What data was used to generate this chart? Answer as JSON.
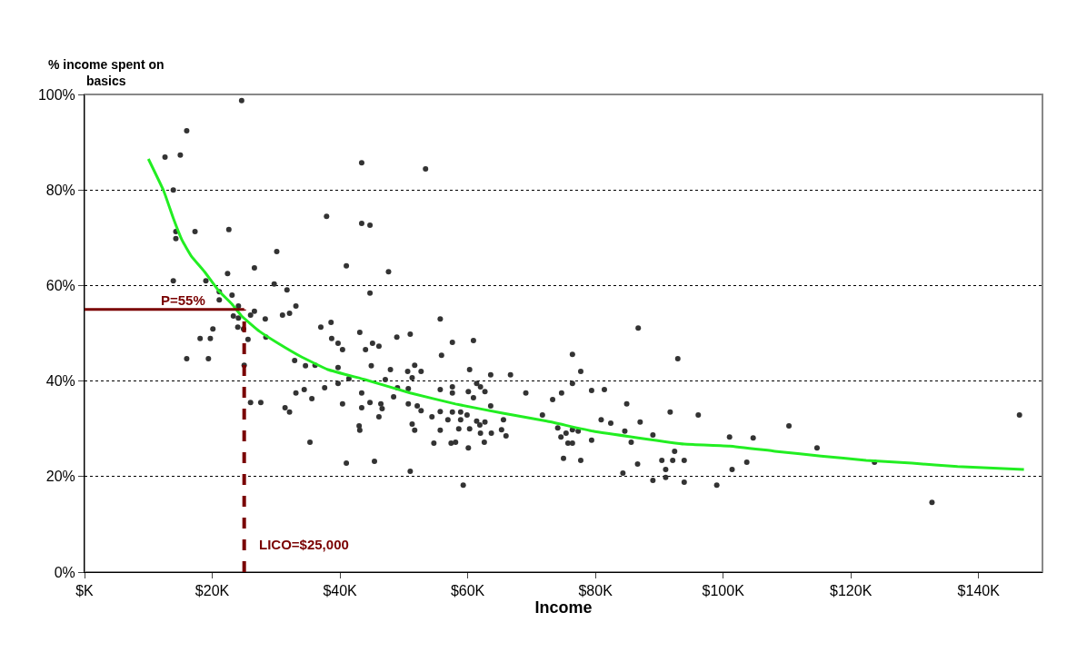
{
  "chart_data": {
    "type": "scatter",
    "xlabel": "Income",
    "ylabel": "% income spent on basics",
    "xlim": [
      0,
      150
    ],
    "xticks": [
      {
        "value": 0,
        "label": "$K"
      },
      {
        "value": 20,
        "label": "$20K"
      },
      {
        "value": 40,
        "label": "$40K"
      },
      {
        "value": 60,
        "label": "$60K"
      },
      {
        "value": 80,
        "label": "$80K"
      },
      {
        "value": 100,
        "label": "$100K"
      },
      {
        "value": 120,
        "label": "$120K"
      },
      {
        "value": 140,
        "label": "$140K"
      }
    ],
    "ylim": [
      0,
      100
    ],
    "yticks": [
      {
        "value": 0,
        "label": "0%"
      },
      {
        "value": 20,
        "label": "20%"
      },
      {
        "value": 40,
        "label": "40%"
      },
      {
        "value": 60,
        "label": "60%"
      },
      {
        "value": 80,
        "label": "80%"
      },
      {
        "value": 100,
        "label": "100%"
      }
    ],
    "grid": "y",
    "series": [
      {
        "marker": "circle",
        "color": "#333333",
        "x": [
          24.6,
          16.0,
          12.6,
          15.0,
          13.9,
          37.9,
          14.3,
          14.3,
          17.3,
          22.6,
          30.1,
          41.0,
          26.6,
          22.4,
          13.9,
          19.0,
          29.7,
          31.7,
          21.1,
          23.1,
          21.1,
          24.1,
          26.6,
          26.0,
          23.3,
          24.1,
          28.3,
          31.0,
          32.1,
          33.1,
          24.9,
          24.0,
          20.1,
          37.0,
          38.6,
          28.4,
          25.6,
          18.1,
          19.7,
          38.7,
          39.7,
          40.4,
          16.0,
          19.4,
          32.9,
          25.0,
          34.6,
          36.1,
          39.7,
          33.1,
          34.4,
          37.6,
          39.7,
          35.6,
          40.4,
          31.4,
          32.1,
          26.0,
          27.6,
          35.3,
          41.0,
          43.4,
          53.4,
          43.4,
          44.7,
          47.6,
          44.7,
          55.7,
          43.1,
          48.9,
          51.0,
          44.0,
          45.1,
          46.1,
          57.6,
          60.9,
          55.9,
          44.9,
          47.9,
          51.7,
          50.6,
          52.7,
          41.4,
          47.1,
          51.3,
          60.3,
          63.6,
          66.7,
          76.4,
          76.4,
          49.0,
          50.7,
          55.7,
          57.6,
          57.6,
          60.1,
          61.4,
          62.0,
          60.9,
          62.7,
          69.1,
          74.7,
          73.3,
          43.4,
          48.4,
          44.7,
          43.4,
          46.4,
          46.6,
          50.7,
          52.1,
          52.7,
          63.6,
          55.7,
          54.4,
          46.1,
          57.6,
          58.9,
          59.9,
          56.9,
          58.9,
          61.4,
          62.7,
          65.6,
          71.7,
          43.0,
          43.1,
          51.3,
          51.7,
          55.7,
          58.6,
          60.3,
          61.9,
          62.0,
          63.7,
          65.3,
          66.0,
          54.7,
          57.4,
          58.1,
          60.1,
          62.6,
          74.1,
          74.6,
          75.4,
          75.7,
          76.4,
          75.0,
          45.4,
          51.0,
          59.3,
          86.7,
          77.7,
          92.9,
          79.4,
          81.4,
          84.9,
          80.9,
          82.4,
          91.7,
          96.1,
          87.0,
          76.4,
          77.3,
          84.6,
          89.0,
          79.4,
          85.6,
          101.0,
          104.7,
          110.3,
          114.7,
          77.7,
          86.6,
          90.4,
          92.1,
          93.9,
          92.4,
          91.0,
          103.7,
          101.4,
          84.3,
          89.0,
          91.0,
          93.9,
          99.0,
          123.7,
          132.7,
          146.4
        ],
        "values": [
          98.7,
          92.4,
          86.9,
          87.3,
          80.0,
          74.5,
          71.3,
          69.8,
          71.3,
          71.7,
          67.1,
          64.1,
          63.7,
          62.5,
          61.0,
          61.0,
          60.3,
          59.1,
          58.7,
          58.0,
          57.0,
          55.7,
          54.6,
          53.8,
          53.6,
          53.2,
          53.0,
          53.8,
          54.2,
          55.7,
          50.9,
          51.3,
          50.9,
          51.3,
          52.3,
          49.2,
          48.7,
          48.9,
          48.9,
          48.9,
          47.9,
          46.6,
          44.7,
          44.7,
          44.3,
          43.3,
          43.2,
          43.3,
          42.8,
          37.5,
          38.2,
          38.6,
          39.5,
          36.3,
          35.2,
          34.4,
          33.5,
          35.5,
          35.5,
          27.2,
          22.8,
          85.7,
          84.4,
          73.0,
          72.6,
          62.9,
          58.4,
          53.0,
          50.2,
          49.2,
          49.8,
          46.6,
          47.9,
          47.3,
          48.1,
          48.5,
          45.4,
          43.2,
          42.4,
          43.3,
          42.0,
          42.0,
          40.5,
          40.3,
          40.7,
          42.4,
          41.3,
          41.3,
          45.6,
          39.5,
          38.6,
          38.4,
          38.2,
          38.8,
          37.5,
          37.8,
          39.5,
          38.8,
          36.5,
          37.8,
          37.5,
          37.5,
          36.1,
          37.5,
          36.7,
          35.5,
          34.4,
          35.2,
          34.2,
          35.2,
          34.8,
          33.8,
          34.8,
          33.6,
          32.5,
          32.5,
          33.5,
          33.5,
          32.9,
          31.9,
          31.9,
          31.6,
          31.4,
          31.9,
          32.9,
          30.6,
          29.7,
          31.0,
          29.7,
          29.7,
          30.0,
          30.0,
          30.8,
          29.1,
          29.1,
          29.8,
          28.5,
          27.0,
          27.0,
          27.2,
          26.0,
          27.2,
          30.2,
          28.3,
          29.1,
          27.0,
          27.0,
          23.8,
          23.2,
          21.1,
          18.2,
          51.1,
          42.0,
          44.7,
          38.0,
          38.2,
          35.2,
          31.9,
          31.2,
          33.5,
          32.9,
          31.4,
          29.8,
          29.5,
          29.5,
          28.7,
          27.6,
          27.2,
          28.3,
          28.1,
          30.6,
          26.0,
          23.4,
          22.6,
          23.4,
          23.4,
          23.4,
          25.3,
          21.5,
          23.0,
          21.5,
          20.7,
          19.2,
          19.8,
          18.8,
          18.2,
          23.0,
          14.6,
          32.9
        ]
      },
      {
        "type": "line",
        "color": "#22ee22",
        "x": [
          10.0,
          12.4,
          13.9,
          15.3,
          16.7,
          18.9,
          21.0,
          23.1,
          24.6,
          27.4,
          30.3,
          33.9,
          38.1,
          43.9,
          51.0,
          58.1,
          65.3,
          72.4,
          79.6,
          86.7,
          93.9,
          101.0,
          108.1,
          115.3,
          122.4,
          129.6,
          136.7,
          147.1
        ],
        "values": [
          86.5,
          79.8,
          74.1,
          69.4,
          66.2,
          62.7,
          58.9,
          56.1,
          53.6,
          50.4,
          47.9,
          45.1,
          42.4,
          40.3,
          37.5,
          35.2,
          33.3,
          31.6,
          29.5,
          28.1,
          26.8,
          26.4,
          25.3,
          24.3,
          23.4,
          22.8,
          22.1,
          21.5
        ]
      }
    ],
    "ref_lines": [
      {
        "axis": "y",
        "value": 55,
        "label": "P=55%",
        "color": "#7a0000",
        "line_style": "solid"
      },
      {
        "axis": "x",
        "value": 25,
        "label": "LICO=$25,000",
        "color": "#7a0000",
        "line_style": "dashed"
      }
    ]
  }
}
